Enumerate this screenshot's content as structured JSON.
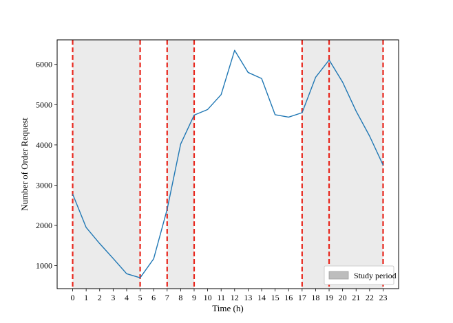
{
  "chart_data": {
    "type": "line",
    "xlabel": "Time (h)",
    "ylabel": "Number of Order Request",
    "x": [
      0,
      1,
      2,
      3,
      4,
      5,
      6,
      7,
      8,
      9,
      10,
      11,
      12,
      13,
      14,
      15,
      16,
      17,
      18,
      19,
      20,
      21,
      22,
      23
    ],
    "series": [
      {
        "values": [
          2780,
          1950,
          1550,
          1180,
          800,
          700,
          1170,
          2400,
          4020,
          4740,
          4880,
          5250,
          6350,
          5800,
          5650,
          4750,
          4690,
          4800,
          5680,
          6110,
          5560,
          4840,
          4220,
          3500
        ],
        "color": "#1f77b4"
      }
    ],
    "xlim": [
      -1.15,
      24.15
    ],
    "ylim": [
      430,
      6610
    ],
    "xticks": [
      "0",
      "1",
      "2",
      "3",
      "4",
      "5",
      "6",
      "7",
      "8",
      "9",
      "10",
      "11",
      "12",
      "13",
      "14",
      "15",
      "16",
      "17",
      "18",
      "19",
      "20",
      "21",
      "22",
      "23"
    ],
    "yticks": [
      1000,
      2000,
      3000,
      4000,
      5000,
      6000
    ],
    "study_periods": [
      [
        0,
        5
      ],
      [
        7,
        9
      ],
      [
        17,
        23
      ]
    ],
    "vlines": [
      0,
      5,
      7,
      9,
      17,
      19,
      23
    ],
    "vline_color": "#e8261c",
    "shade_color": "#ebebeb",
    "legend": {
      "label": "Study period",
      "position": "lower right"
    },
    "grid": false
  }
}
